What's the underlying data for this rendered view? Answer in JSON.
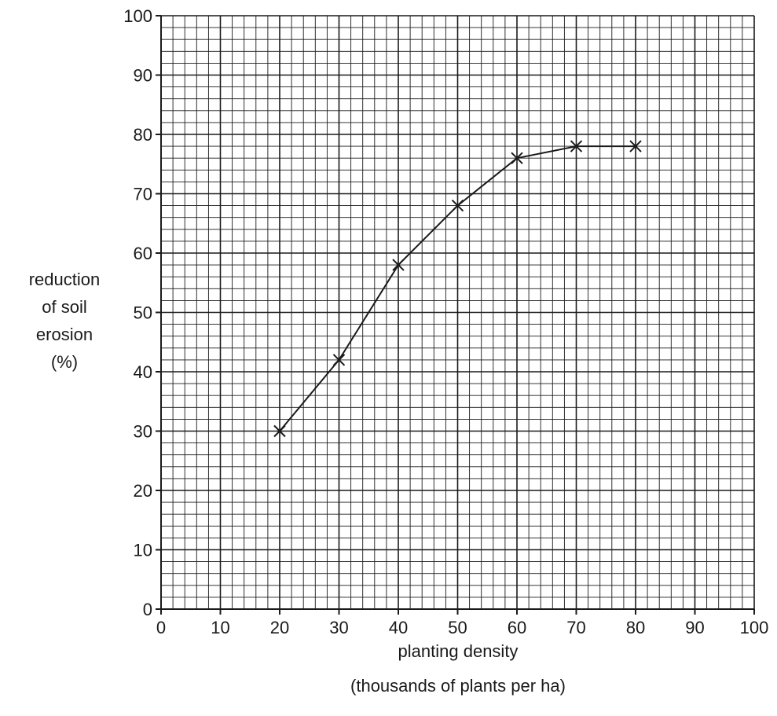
{
  "chart_data": {
    "type": "line",
    "xlabel": [
      "planting density",
      "(thousands of plants per ha)"
    ],
    "ylabel": [
      "reduction",
      "of soil",
      "erosion",
      "(%)"
    ],
    "xlim": [
      0,
      100
    ],
    "ylim": [
      0,
      100
    ],
    "x_ticks": [
      "0",
      "10",
      "20",
      "30",
      "40",
      "50",
      "60",
      "70",
      "80",
      "90",
      "100"
    ],
    "y_ticks": [
      "0",
      "10",
      "20",
      "30",
      "40",
      "50",
      "60",
      "70",
      "80",
      "90",
      "100"
    ],
    "grid": {
      "major": 10,
      "minor": 2
    },
    "marker": "x",
    "series": [
      {
        "x": [
          20,
          30,
          40,
          50,
          60,
          70,
          80
        ],
        "y": [
          30,
          42,
          58,
          68,
          76,
          78,
          78
        ]
      }
    ],
    "colors": {
      "line": "#1a1a1a",
      "grid": "#1a1a1a",
      "background": "#ffffff"
    }
  }
}
